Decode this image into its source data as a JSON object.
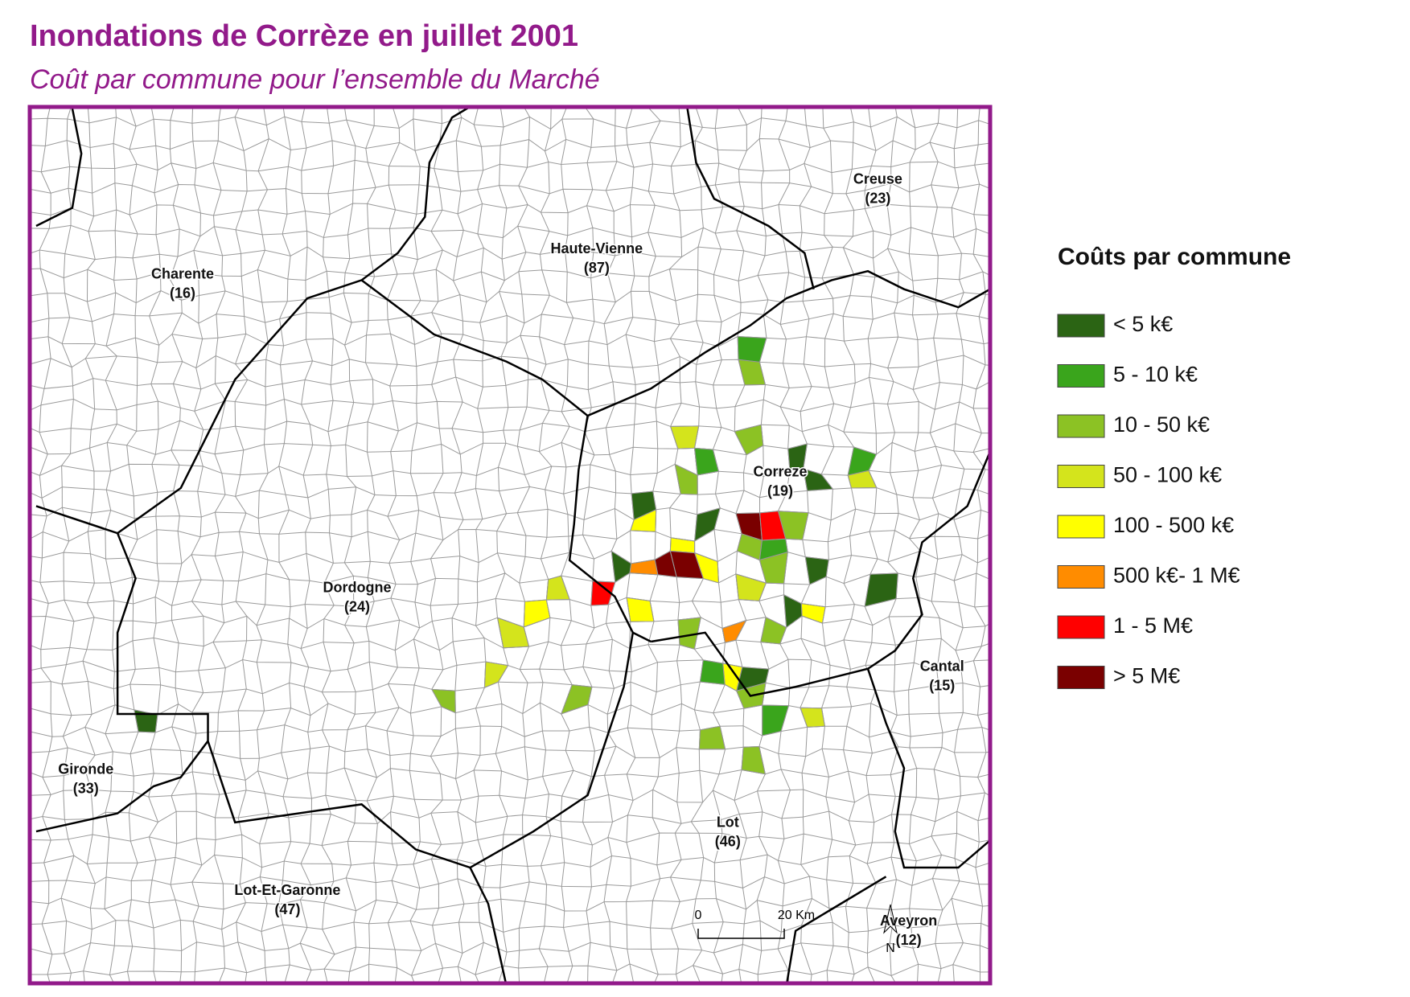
{
  "header": {
    "title": "Inondations de Corrèze en juillet 2001",
    "subtitle": "Coût par commune pour l’ensemble du Marché"
  },
  "map": {
    "regions": [
      {
        "name": "Charente",
        "code": "(16)"
      },
      {
        "name": "Haute-Vienne",
        "code": "(87)"
      },
      {
        "name": "Creuse",
        "code": "(23)"
      },
      {
        "name": "Correze",
        "code": "(19)"
      },
      {
        "name": "Dordogne",
        "code": "(24)"
      },
      {
        "name": "Cantal",
        "code": "(15)"
      },
      {
        "name": "Gironde",
        "code": "(33)"
      },
      {
        "name": "Lot",
        "code": "(46)"
      },
      {
        "name": "Lot-Et-Garonne",
        "code": "(47)"
      },
      {
        "name": "Aveyron",
        "code": "(12)"
      }
    ],
    "scale_bar": [
      "0",
      "20 Km"
    ],
    "north": "N"
  },
  "legend": {
    "title": "Coûts par commune",
    "items": [
      {
        "label": "< 5 k€",
        "color": "#2b6414"
      },
      {
        "label": "5 - 10 k€",
        "color": "#3aa51c"
      },
      {
        "label": "10 - 50 k€",
        "color": "#8cc224"
      },
      {
        "label": "50 - 100 k€",
        "color": "#d4e41c"
      },
      {
        "label": "100 - 500 k€",
        "color": "#ffff00"
      },
      {
        "label": "500 k€- 1 M€",
        "color": "#ff8c00"
      },
      {
        "label": "1 - 5 M€",
        "color": "#ff0000"
      },
      {
        "label": "> 5 M€",
        "color": "#7a0000"
      }
    ]
  }
}
